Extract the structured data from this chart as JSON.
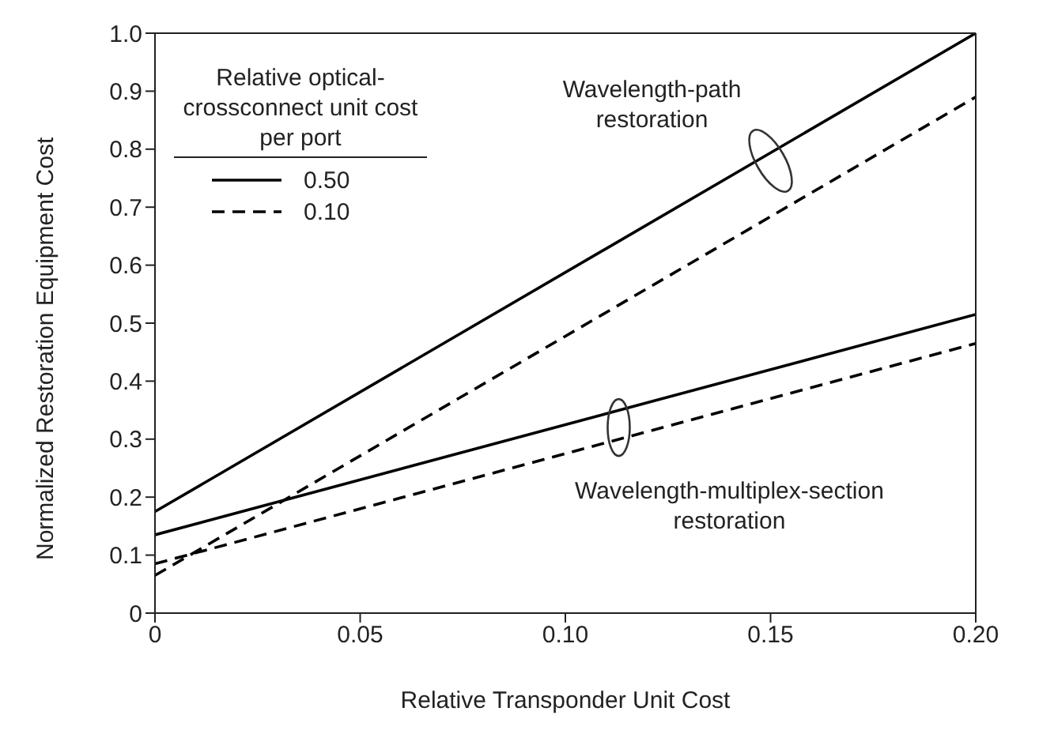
{
  "chart_data": {
    "type": "line",
    "xlabel": "Relative Transponder Unit Cost",
    "ylabel": "Normalized Restoration Equipment Cost",
    "legend_title": "Relative optical-crossconnect unit cost per port",
    "legend": "top left",
    "grid": false,
    "marker": "none",
    "x": [
      0,
      0.2
    ],
    "xlim": [
      0,
      0.2
    ],
    "xticks": [
      0,
      0.05,
      {
        "value": 0.1,
        "label": "0.10"
      },
      0.15,
      {
        "value": 0.2,
        "label": "0.20"
      }
    ],
    "ylim": [
      0,
      1.0
    ],
    "yticks": [
      0,
      0.1,
      0.2,
      0.3,
      0.4,
      0.5,
      0.6,
      0.7,
      0.8,
      0.9,
      {
        "value": 1.0,
        "label": "1.0"
      }
    ],
    "series": [
      {
        "name": "0.50",
        "color": "#000000",
        "line_style": "solid",
        "values": [
          0.175,
          1.0
        ]
      },
      {
        "name": "0.10",
        "color": "#000000",
        "line_style": "dashed",
        "values": [
          0.065,
          0.89
        ]
      },
      {
        "color": "#000000",
        "line_style": "solid",
        "values": [
          0.135,
          0.515
        ]
      },
      {
        "color": "#000000",
        "line_style": "dashed",
        "values": [
          0.085,
          0.465
        ]
      }
    ],
    "annotations": [
      {
        "text": "Wavelength-path restoration",
        "x": 0.15,
        "y": 0.78
      },
      {
        "text": "Wavelength-multiplex-section restoration",
        "x": 0.113,
        "y": 0.32
      }
    ]
  }
}
